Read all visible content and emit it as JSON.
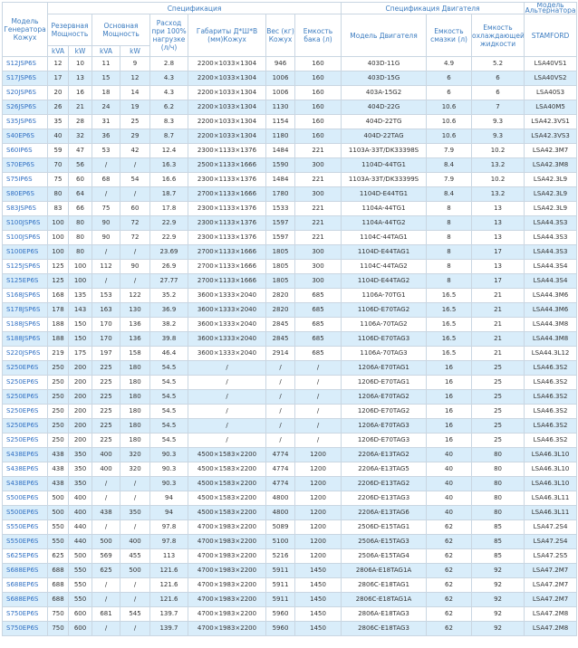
{
  "header": {
    "spec": "Спецификация",
    "engine_spec": "Спецификация Двигателя",
    "alt_model": "Модель Альтернатора",
    "model": "Модель Генератора Кожух",
    "standby": "Резервная Мощность",
    "prime": "Основная Мощность",
    "kva1": "kVA",
    "kw1": "kW",
    "kva2": "kVA",
    "kw2": "kW",
    "fuel": "Расход при 100% нагрузке (л/ч)",
    "dims": "Габариты Д*Ш*В (мм)Кожух",
    "weight": "Вес (кг) Кожух",
    "tank": "Емкость бака (л)",
    "engine": "Модель Двигателя",
    "oil": "Емкость смазки (л)",
    "coolant": "Емкость охлаждающей жидкости",
    "stamford": "STAMFORD"
  },
  "table": {
    "rows": [
      [
        "S12JSP6S",
        "12",
        "10",
        "11",
        "9",
        "2.8",
        "2200×1033×1304",
        "946",
        "160",
        "403D-11G",
        "4.9",
        "5.2",
        "LSA40VS1"
      ],
      [
        "S17JSP6S",
        "17",
        "13",
        "15",
        "12",
        "4.3",
        "2200×1033×1304",
        "1006",
        "160",
        "403D-15G",
        "6",
        "6",
        "LSA40VS2"
      ],
      [
        "S20JSP6S",
        "20",
        "16",
        "18",
        "14",
        "4.3",
        "2200×1033×1304",
        "1006",
        "160",
        "403A-15G2",
        "6",
        "6",
        "LSA40S3"
      ],
      [
        "S26JSP6S",
        "26",
        "21",
        "24",
        "19",
        "6.2",
        "2200×1033×1304",
        "1130",
        "160",
        "404D-22G",
        "10.6",
        "7",
        "LSA40M5"
      ],
      [
        "S35JSP6S",
        "35",
        "28",
        "31",
        "25",
        "8.3",
        "2200×1033×1304",
        "1154",
        "160",
        "404D-22TG",
        "10.6",
        "9.3",
        "LSA42.3VS1"
      ],
      [
        "S40EP6S",
        "40",
        "32",
        "36",
        "29",
        "8.7",
        "2200×1033×1304",
        "1180",
        "160",
        "404D-22TAG",
        "10.6",
        "9.3",
        "LSA42.3VS3"
      ],
      [
        "S60IP6S",
        "59",
        "47",
        "53",
        "42",
        "12.4",
        "2300×1133×1376",
        "1484",
        "221",
        "1103A-33T/DK33398S",
        "7.9",
        "10.2",
        "LSA42.3M7"
      ],
      [
        "S70EP6S",
        "70",
        "56",
        "/",
        "/",
        "16.3",
        "2500×1133×1666",
        "1590",
        "300",
        "1104D-44TG1",
        "8.4",
        "13.2",
        "LSA42.3M8"
      ],
      [
        "S75IP6S",
        "75",
        "60",
        "68",
        "54",
        "16.6",
        "2300×1133×1376",
        "1484",
        "221",
        "1103A-33T/DK33399S",
        "7.9",
        "10.2",
        "LSA42.3L9"
      ],
      [
        "S80EP6S",
        "80",
        "64",
        "/",
        "/",
        "18.7",
        "2700×1133×1666",
        "1780",
        "300",
        "1104D-E44TG1",
        "8.4",
        "13.2",
        "LSA42.3L9"
      ],
      [
        "S83JSP6S",
        "83",
        "66",
        "75",
        "60",
        "17.8",
        "2300×1133×1376",
        "1533",
        "221",
        "1104A-44TG1",
        "8",
        "13",
        "LSA42.3L9"
      ],
      [
        "S100JSP6S",
        "100",
        "80",
        "90",
        "72",
        "22.9",
        "2300×1133×1376",
        "1597",
        "221",
        "1104A-44TG2",
        "8",
        "13",
        "LSA44.3S3"
      ],
      [
        "S100JSP6S",
        "100",
        "80",
        "90",
        "72",
        "22.9",
        "2300×1133×1376",
        "1597",
        "221",
        "1104C-44TAG1",
        "8",
        "13",
        "LSA44.3S3"
      ],
      [
        "S100EP6S",
        "100",
        "80",
        "/",
        "/",
        "23.69",
        "2700×1133×1666",
        "1805",
        "300",
        "1104D-E44TAG1",
        "8",
        "17",
        "LSA44.3S3"
      ],
      [
        "S125JSP6S",
        "125",
        "100",
        "112",
        "90",
        "26.9",
        "2700×1133×1666",
        "1805",
        "300",
        "1104C-44TAG2",
        "8",
        "13",
        "LSA44.3S4"
      ],
      [
        "S125EP6S",
        "125",
        "100",
        "/",
        "/",
        "27.77",
        "2700×1133×1666",
        "1805",
        "300",
        "1104D-E44TAG2",
        "8",
        "17",
        "LSA44.3S4"
      ],
      [
        "S168JSP6S",
        "168",
        "135",
        "153",
        "122",
        "35.2",
        "3600×1333×2040",
        "2820",
        "685",
        "1106A-70TG1",
        "16.5",
        "21",
        "LSA44.3M6"
      ],
      [
        "S178JSP6S",
        "178",
        "143",
        "163",
        "130",
        "36.9",
        "3600×1333×2040",
        "2820",
        "685",
        "1106D-E70TAG2",
        "16.5",
        "21",
        "LSA44.3M6"
      ],
      [
        "S188JSP6S",
        "188",
        "150",
        "170",
        "136",
        "38.2",
        "3600×1333×2040",
        "2845",
        "685",
        "1106A-70TAG2",
        "16.5",
        "21",
        "LSA44.3M8"
      ],
      [
        "S188JSP6S",
        "188",
        "150",
        "170",
        "136",
        "39.8",
        "3600×1333×2040",
        "2845",
        "685",
        "1106D-E70TAG3",
        "16.5",
        "21",
        "LSA44.3M8"
      ],
      [
        "S220JSP6S",
        "219",
        "175",
        "197",
        "158",
        "46.4",
        "3600×1333×2040",
        "2914",
        "685",
        "1106A-70TAG3",
        "16.5",
        "21",
        "LSA44.3L12"
      ],
      [
        "S250EP6S",
        "250",
        "200",
        "225",
        "180",
        "54.5",
        "/",
        "/",
        "/",
        "1206A-E70TAG1",
        "16",
        "25",
        "LSA46.3S2"
      ],
      [
        "S250EP6S",
        "250",
        "200",
        "225",
        "180",
        "54.5",
        "/",
        "/",
        "/",
        "1206D-E70TAG1",
        "16",
        "25",
        "LSA46.3S2"
      ],
      [
        "S250EP6S",
        "250",
        "200",
        "225",
        "180",
        "54.5",
        "/",
        "/",
        "/",
        "1206A-E70TAG2",
        "16",
        "25",
        "LSA46.3S2"
      ],
      [
        "S250EP6S",
        "250",
        "200",
        "225",
        "180",
        "54.5",
        "/",
        "/",
        "/",
        "1206D-E70TAG2",
        "16",
        "25",
        "LSA46.3S2"
      ],
      [
        "S250EP6S",
        "250",
        "200",
        "225",
        "180",
        "54.5",
        "/",
        "/",
        "/",
        "1206A-E70TAG3",
        "16",
        "25",
        "LSA46.3S2"
      ],
      [
        "S250EP6S",
        "250",
        "200",
        "225",
        "180",
        "54.5",
        "/",
        "/",
        "/",
        "1206D-E70TAG3",
        "16",
        "25",
        "LSA46.3S2"
      ],
      [
        "S438EP6S",
        "438",
        "350",
        "400",
        "320",
        "90.3",
        "4500×1583×2200",
        "4774",
        "1200",
        "2206A-E13TAG2",
        "40",
        "80",
        "LSA46.3L10"
      ],
      [
        "S438EP6S",
        "438",
        "350",
        "400",
        "320",
        "90.3",
        "4500×1583×2200",
        "4774",
        "1200",
        "2206A-E13TAG5",
        "40",
        "80",
        "LSA46.3L10"
      ],
      [
        "S438EP6S",
        "438",
        "350",
        "/",
        "/",
        "90.3",
        "4500×1583×2200",
        "4774",
        "1200",
        "2206D-E13TAG2",
        "40",
        "80",
        "LSA46.3L10"
      ],
      [
        "S500EP6S",
        "500",
        "400",
        "/",
        "/",
        "94",
        "4500×1583×2200",
        "4800",
        "1200",
        "2206D-E13TAG3",
        "40",
        "80",
        "LSA46.3L11"
      ],
      [
        "S500EP6S",
        "500",
        "400",
        "438",
        "350",
        "94",
        "4500×1583×2200",
        "4800",
        "1200",
        "2206A-E13TAG6",
        "40",
        "80",
        "LSA46.3L11"
      ],
      [
        "S550EP6S",
        "550",
        "440",
        "/",
        "/",
        "97.8",
        "4700×1983×2200",
        "5089",
        "1200",
        "2506D-E15TAG1",
        "62",
        "85",
        "LSA47.2S4"
      ],
      [
        "S550EP6S",
        "550",
        "440",
        "500",
        "400",
        "97.8",
        "4700×1983×2200",
        "5100",
        "1200",
        "2506A-E15TAG3",
        "62",
        "85",
        "LSA47.2S4"
      ],
      [
        "S625EP6S",
        "625",
        "500",
        "569",
        "455",
        "113",
        "4700×1983×2200",
        "5216",
        "1200",
        "2506A-E15TAG4",
        "62",
        "85",
        "LSA47.2S5"
      ],
      [
        "S688EP6S",
        "688",
        "550",
        "625",
        "500",
        "121.6",
        "4700×1983×2200",
        "5911",
        "1450",
        "2806A-E18TAG1A",
        "62",
        "92",
        "LSA47.2M7"
      ],
      [
        "S688EP6S",
        "688",
        "550",
        "/",
        "/",
        "121.6",
        "4700×1983×2200",
        "5911",
        "1450",
        "2806C-E18TAG1",
        "62",
        "92",
        "LSA47.2M7"
      ],
      [
        "S688EP6S",
        "688",
        "550",
        "/",
        "/",
        "121.6",
        "4700×1983×2200",
        "5911",
        "1450",
        "2806C-E18TAG1A",
        "62",
        "92",
        "LSA47.2M7"
      ],
      [
        "S750EP6S",
        "750",
        "600",
        "681",
        "545",
        "139.7",
        "4700×1983×2200",
        "5960",
        "1450",
        "2806A-E18TAG3",
        "62",
        "92",
        "LSA47.2M8"
      ],
      [
        "S750EP6S",
        "750",
        "600",
        "/",
        "/",
        "139.7",
        "4700×1983×2200",
        "5960",
        "1450",
        "2806C-E18TAG3",
        "62",
        "92",
        "LSA47.2M8"
      ]
    ]
  }
}
